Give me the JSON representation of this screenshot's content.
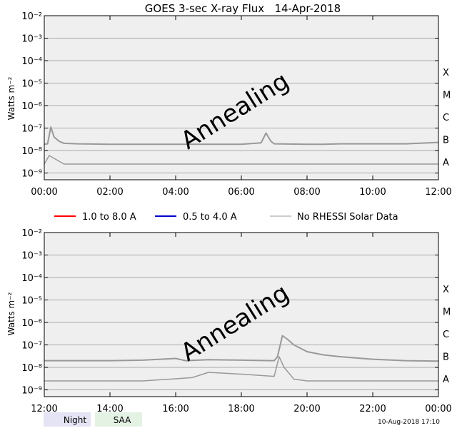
{
  "title": "GOES 3-sec X-ray Flux   14-Apr-2018",
  "watermark": "Annealing",
  "legend": [
    {
      "label": "1.0 to 8.0 A",
      "color": "#ff0000"
    },
    {
      "label": "0.5 to 4.0 A",
      "color": "#0000cc"
    },
    {
      "label": "No RHESSI Solar Data",
      "color": "#999999"
    }
  ],
  "footer": {
    "night_label": "Night",
    "night_color": "#e4e4f4",
    "saa_label": "SAA",
    "saa_color": "#e4f2e4",
    "timestamp": "10-Aug-2018 17:10"
  },
  "colors": {
    "plot_bg": "#efefef",
    "grid": "#a8a8a8",
    "trace": "#999999"
  },
  "chart_data": [
    {
      "type": "line",
      "ylabel": "Watts m⁻²",
      "yscale": "log",
      "ylim_exp": [
        -9.3,
        -2
      ],
      "ytick_exponents": [
        -9,
        -8,
        -7,
        -6,
        -5,
        -4,
        -3,
        -2
      ],
      "class_labels": [
        {
          "label": "A",
          "exp": -8.5
        },
        {
          "label": "B",
          "exp": -7.5
        },
        {
          "label": "C",
          "exp": -6.5
        },
        {
          "label": "M",
          "exp": -5.5
        },
        {
          "label": "X",
          "exp": -4.5
        }
      ],
      "xlim_hours": [
        0,
        12
      ],
      "xticks": [
        "00:00",
        "02:00",
        "04:00",
        "06:00",
        "08:00",
        "10:00",
        "12:00"
      ],
      "series": [
        {
          "x_hours": [
            0,
            0.1,
            0.2,
            0.3,
            0.45,
            0.6,
            1,
            2,
            3,
            4,
            5,
            6,
            6.6,
            6.75,
            6.9,
            7,
            8,
            8.5,
            9,
            10,
            11,
            12
          ],
          "y": [
            1.9e-08,
            2e-08,
            1.1e-07,
            4e-08,
            2.6e-08,
            2.1e-08,
            2e-08,
            1.9e-08,
            1.9e-08,
            1.9e-08,
            1.9e-08,
            1.9e-08,
            2.2e-08,
            6e-08,
            2.6e-08,
            2e-08,
            1.9e-08,
            1.9e-08,
            2e-08,
            2e-08,
            2e-08,
            2.3e-08
          ]
        },
        {
          "x_hours": [
            0,
            0.15,
            0.6,
            12
          ],
          "y": [
            2.5e-09,
            6e-09,
            2.5e-09,
            2.5e-09
          ]
        }
      ]
    },
    {
      "type": "line",
      "ylabel": "Watts m⁻²",
      "yscale": "log",
      "ylim_exp": [
        -9.3,
        -2
      ],
      "ytick_exponents": [
        -9,
        -8,
        -7,
        -6,
        -5,
        -4,
        -3,
        -2
      ],
      "class_labels": [
        {
          "label": "A",
          "exp": -8.5
        },
        {
          "label": "B",
          "exp": -7.5
        },
        {
          "label": "C",
          "exp": -6.5
        },
        {
          "label": "M",
          "exp": -5.5
        },
        {
          "label": "X",
          "exp": -4.5
        }
      ],
      "xlim_hours": [
        12,
        24
      ],
      "xticks": [
        "12:00",
        "14:00",
        "16:00",
        "18:00",
        "20:00",
        "22:00",
        "00:00"
      ],
      "series": [
        {
          "x_hours": [
            12,
            13,
            14,
            15,
            16,
            16.3,
            17,
            18,
            19,
            19.1,
            19.25,
            19.4,
            19.6,
            20,
            20.5,
            21,
            22,
            23,
            24
          ],
          "y": [
            2e-08,
            2e-08,
            2e-08,
            2.1e-08,
            2.5e-08,
            2e-08,
            2.2e-08,
            2.1e-08,
            2e-08,
            3e-08,
            2.6e-07,
            1.8e-07,
            1e-07,
            5e-08,
            3.6e-08,
            3e-08,
            2.3e-08,
            2e-08,
            1.9e-08
          ]
        },
        {
          "x_hours": [
            12,
            15,
            16.5,
            17,
            18,
            19,
            19.15,
            19.3,
            19.6,
            20,
            21,
            24
          ],
          "y": [
            2.5e-09,
            2.5e-09,
            3.5e-09,
            6e-09,
            5e-09,
            4e-09,
            3e-08,
            1e-08,
            3e-09,
            2.5e-09,
            2.5e-09,
            2.5e-09
          ]
        }
      ]
    }
  ]
}
